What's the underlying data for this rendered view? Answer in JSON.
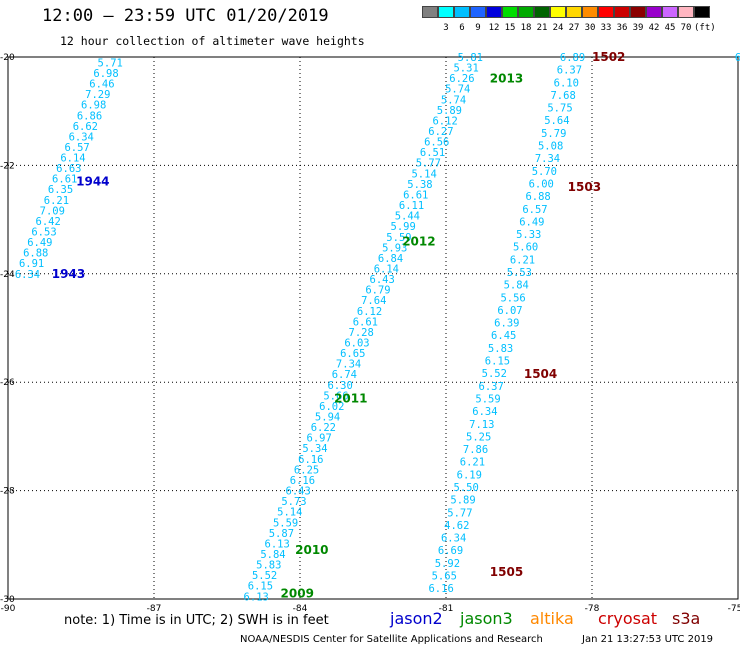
{
  "header": {
    "title": "12:00 – 23:59 UTC 01/20/2019",
    "subtitle": "12 hour collection of altimeter wave heights"
  },
  "colorbar": {
    "unit": "(ft)",
    "entries": [
      {
        "label": "",
        "color": "#808080"
      },
      {
        "label": "3",
        "color": "#00ffff"
      },
      {
        "label": "6",
        "color": "#00bfff"
      },
      {
        "label": "9",
        "color": "#1e64ff"
      },
      {
        "label": "12",
        "color": "#0000dd"
      },
      {
        "label": "15",
        "color": "#00dd00"
      },
      {
        "label": "18",
        "color": "#00aa00"
      },
      {
        "label": "21",
        "color": "#006400"
      },
      {
        "label": "24",
        "color": "#ffff00"
      },
      {
        "label": "27",
        "color": "#ffd700"
      },
      {
        "label": "30",
        "color": "#ff8c00"
      },
      {
        "label": "33",
        "color": "#ff0000"
      },
      {
        "label": "36",
        "color": "#cc0000"
      },
      {
        "label": "39",
        "color": "#8b0000"
      },
      {
        "label": "42",
        "color": "#9900cc"
      },
      {
        "label": "45",
        "color": "#cc66ff"
      },
      {
        "label": "70",
        "color": "#ffb6c1"
      },
      {
        "label": "",
        "color": "#000000"
      }
    ]
  },
  "footer": {
    "note": "note:  1) Time is in UTC;  2) SWH is in feet",
    "credit": "NOAA/NESDIS Center for Satellite Applications and Research",
    "timestamp": "Jan 21 13:27:53 UTC 2019",
    "legend": [
      {
        "name": "jason2",
        "color": "#0000cc"
      },
      {
        "name": "jason3",
        "color": "#008800"
      },
      {
        "name": "altika",
        "color": "#ff8800"
      },
      {
        "name": "cryosat",
        "color": "#cc0000"
      },
      {
        "name": "s3a",
        "color": "#800000"
      }
    ]
  },
  "chart_data": {
    "type": "scatter",
    "title": "12 hour collection of altimeter wave heights",
    "xlabel": "",
    "ylabel": "",
    "xlim": [
      -90,
      -75
    ],
    "ylim": [
      -30,
      -20
    ],
    "xticks": [
      -90,
      -87,
      -84,
      -81,
      -78,
      -75
    ],
    "yticks": [
      -20,
      -22,
      -24,
      -26,
      -28,
      -30
    ],
    "grid": true,
    "grid_style": "dotted",
    "value_color": "#00bfff",
    "tracks": [
      {
        "series": "jason3",
        "pass_labels": [
          {
            "text": "1944",
            "lon": -88.6,
            "lat": -22.3,
            "color": "#0000cc"
          },
          {
            "text": "1943",
            "lon": -89.1,
            "lat": -24.0,
            "color": "#0000cc"
          }
        ],
        "start": [
          -87.9,
          -20.1
        ],
        "end": [
          -89.6,
          -24.0
        ],
        "values": [
          "5.71",
          "6.98",
          "6.46",
          "7.29",
          "6.98",
          "6.86",
          "6.62",
          "6.34",
          "6.57",
          "6.14",
          "6.63",
          "6.61",
          "6.35",
          "6.21",
          "7.09",
          "6.42",
          "6.53",
          "6.49",
          "6.88",
          "6.91",
          "6.34"
        ]
      },
      {
        "series": "jason3",
        "pass_labels": [
          {
            "text": "2013",
            "lon": -80.1,
            "lat": -20.4,
            "color": "#008800"
          },
          {
            "text": "2012",
            "lon": -81.9,
            "lat": -23.4,
            "color": "#008800"
          },
          {
            "text": "2011",
            "lon": -83.3,
            "lat": -26.3,
            "color": "#008800"
          },
          {
            "text": "2010",
            "lon": -84.1,
            "lat": -29.1,
            "color": "#008800"
          },
          {
            "text": "2009",
            "lon": -84.4,
            "lat": -29.9,
            "color": "#008800"
          }
        ],
        "start": [
          -80.5,
          -20.0
        ],
        "end": [
          -84.9,
          -29.95
        ],
        "values": [
          "5.81",
          "5.31",
          "6.26",
          "5.74",
          "5.74",
          "5.89",
          "6.12",
          "6.27",
          "6.56",
          "6.51",
          "5.77",
          "5.14",
          "5.38",
          "6.61",
          "6.11",
          "5.44",
          "5.99",
          "5.59",
          "5.93",
          "6.84",
          "6.14",
          "6.43",
          "6.79",
          "7.64",
          "6.12",
          "6.61",
          "7.28",
          "6.03",
          "6.65",
          "7.34",
          "6.74",
          "6.30",
          "5.66",
          "6.02",
          "5.94",
          "6.22",
          "6.97",
          "5.34",
          "6.16",
          "6.25",
          "6.16",
          "6.43",
          "5.73",
          "5.14",
          "5.59",
          "5.87",
          "6.13",
          "5.84",
          "5.83",
          "5.52",
          "6.15",
          "6.13"
        ]
      },
      {
        "series": "s3a",
        "pass_labels": [
          {
            "text": "1502",
            "lon": -78.0,
            "lat": -20.0,
            "color": "#800000"
          },
          {
            "text": "1503",
            "lon": -78.5,
            "lat": -22.4,
            "color": "#800000"
          },
          {
            "text": "1504",
            "lon": -79.4,
            "lat": -25.85,
            "color": "#800000"
          },
          {
            "text": "1505",
            "lon": -80.1,
            "lat": -29.5,
            "color": "#800000"
          }
        ],
        "start": [
          -78.4,
          -20.0
        ],
        "end": [
          -81.1,
          -29.8
        ],
        "values": [
          "6.89",
          "6.37",
          "6.10",
          "7.68",
          "5.75",
          "5.64",
          "5.79",
          "5.08",
          "7.34",
          "5.70",
          "6.00",
          "6.88",
          "6.57",
          "6.49",
          "5.33",
          "5.60",
          "6.21",
          "5.53",
          "5.84",
          "5.56",
          "6.07",
          "6.39",
          "6.45",
          "5.83",
          "6.15",
          "5.52",
          "6.37",
          "5.59",
          "6.34",
          "7.13",
          "5.25",
          "7.86",
          "6.21",
          "6.19",
          "5.50",
          "5.89",
          "5.77",
          "4.62",
          "6.34",
          "6.69",
          "5.92",
          "5.65",
          "6.16"
        ]
      },
      {
        "series": "jason3",
        "pass_labels": [],
        "start": [
          -75.0,
          -20.0
        ],
        "end": [
          -75.0,
          -20.3
        ],
        "values": [
          "6"
        ]
      }
    ]
  }
}
